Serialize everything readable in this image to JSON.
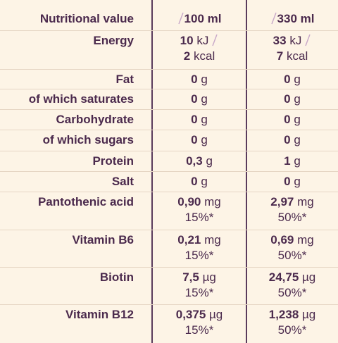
{
  "header": {
    "label": "Nutritional value",
    "col1": "100 ml",
    "col2": "330 ml"
  },
  "rows": [
    {
      "label": "Energy",
      "per_100ml": {
        "lines": [
          {
            "amount": "10",
            "unit": "kJ"
          },
          {
            "amount": "2",
            "unit": "kcal"
          }
        ]
      },
      "per_330ml": {
        "lines": [
          {
            "amount": "33",
            "unit": "kJ"
          },
          {
            "amount": "7",
            "unit": "kcal"
          }
        ]
      }
    },
    {
      "label": "Fat",
      "per_100ml": {
        "lines": [
          {
            "amount": "0",
            "unit": "g"
          }
        ]
      },
      "per_330ml": {
        "lines": [
          {
            "amount": "0",
            "unit": "g"
          }
        ]
      }
    },
    {
      "label": "of which saturates",
      "per_100ml": {
        "lines": [
          {
            "amount": "0",
            "unit": "g"
          }
        ]
      },
      "per_330ml": {
        "lines": [
          {
            "amount": "0",
            "unit": "g"
          }
        ]
      }
    },
    {
      "label": "Carbohydrate",
      "per_100ml": {
        "lines": [
          {
            "amount": "0",
            "unit": "g"
          }
        ]
      },
      "per_330ml": {
        "lines": [
          {
            "amount": "0",
            "unit": "g"
          }
        ]
      }
    },
    {
      "label": "of which sugars",
      "per_100ml": {
        "lines": [
          {
            "amount": "0",
            "unit": "g"
          }
        ]
      },
      "per_330ml": {
        "lines": [
          {
            "amount": "0",
            "unit": "g"
          }
        ]
      }
    },
    {
      "label": "Protein",
      "per_100ml": {
        "lines": [
          {
            "amount": "0,3",
            "unit": "g"
          }
        ]
      },
      "per_330ml": {
        "lines": [
          {
            "amount": "1",
            "unit": "g"
          }
        ]
      }
    },
    {
      "label": "Salt",
      "per_100ml": {
        "lines": [
          {
            "amount": "0",
            "unit": "g"
          }
        ]
      },
      "per_330ml": {
        "lines": [
          {
            "amount": "0",
            "unit": "g"
          }
        ]
      }
    },
    {
      "label": "Pantothenic acid",
      "per_100ml": {
        "lines": [
          {
            "amount": "0,90",
            "unit": "mg"
          }
        ],
        "ri": "15%*"
      },
      "per_330ml": {
        "lines": [
          {
            "amount": "2,97",
            "unit": "mg"
          }
        ],
        "ri": "50%*"
      }
    },
    {
      "label": "Vitamin B6",
      "per_100ml": {
        "lines": [
          {
            "amount": "0,21",
            "unit": "mg"
          }
        ],
        "ri": "15%*"
      },
      "per_330ml": {
        "lines": [
          {
            "amount": "0,69",
            "unit": "mg"
          }
        ],
        "ri": "50%*"
      }
    },
    {
      "label": "Biotin",
      "per_100ml": {
        "lines": [
          {
            "amount": "7,5",
            "unit": "µg"
          }
        ],
        "ri": "15%*"
      },
      "per_330ml": {
        "lines": [
          {
            "amount": "24,75",
            "unit": "µg"
          }
        ],
        "ri": "50%*"
      }
    },
    {
      "label": "Vitamin B12",
      "per_100ml": {
        "lines": [
          {
            "amount": "0,375",
            "unit": "µg"
          }
        ],
        "ri": "15%*"
      },
      "per_330ml": {
        "lines": [
          {
            "amount": "1,238",
            "unit": "µg"
          }
        ],
        "ri": "50%*"
      }
    }
  ]
}
